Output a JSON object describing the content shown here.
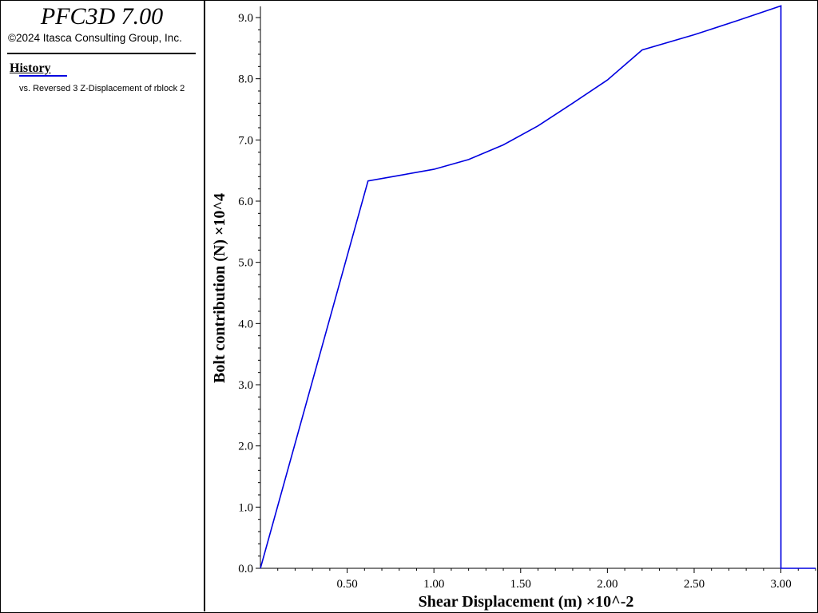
{
  "app": {
    "title": "PFC3D 7.00",
    "copyright": "©2024 Itasca Consulting Group, Inc."
  },
  "legend": {
    "header": "History",
    "items": [
      {
        "label": "vs. Reversed 3 Z-Displacement of rblock 2",
        "color": "#0000e0"
      }
    ]
  },
  "colors": {
    "series": "#0000e0",
    "axis": "#000000",
    "background": "#ffffff"
  },
  "chart_data": {
    "type": "line",
    "title": "",
    "xlabel": "Shear Displacement (m) ×10^-2",
    "ylabel": "Bolt contribution (N) ×10^4",
    "xlim": [
      0,
      3.2
    ],
    "ylim": [
      0,
      9.2
    ],
    "x_ticks": [
      0.5,
      1.0,
      1.5,
      2.0,
      2.5,
      3.0
    ],
    "x_tick_labels": [
      "0.50",
      "1.00",
      "1.50",
      "2.00",
      "2.50",
      "3.00"
    ],
    "y_ticks": [
      0,
      1,
      2,
      3,
      4,
      5,
      6,
      7,
      8,
      9
    ],
    "y_tick_labels": [
      "0.0",
      "1.0",
      "2.0",
      "3.0",
      "4.0",
      "5.0",
      "6.0",
      "7.0",
      "8.0",
      "9.0"
    ],
    "grid": false,
    "legend_position": "left-panel",
    "series": [
      {
        "name": "vs. Reversed 3 Z-Displacement of rblock 2",
        "x": [
          0.0,
          0.62,
          0.8,
          1.0,
          1.2,
          1.4,
          1.6,
          1.8,
          2.0,
          2.2,
          2.5,
          2.75,
          3.0,
          3.0,
          3.2
        ],
        "y": [
          0.0,
          6.33,
          6.42,
          6.52,
          6.68,
          6.92,
          7.23,
          7.6,
          7.98,
          8.47,
          8.72,
          8.95,
          9.19,
          0.0,
          0.0
        ]
      }
    ]
  }
}
